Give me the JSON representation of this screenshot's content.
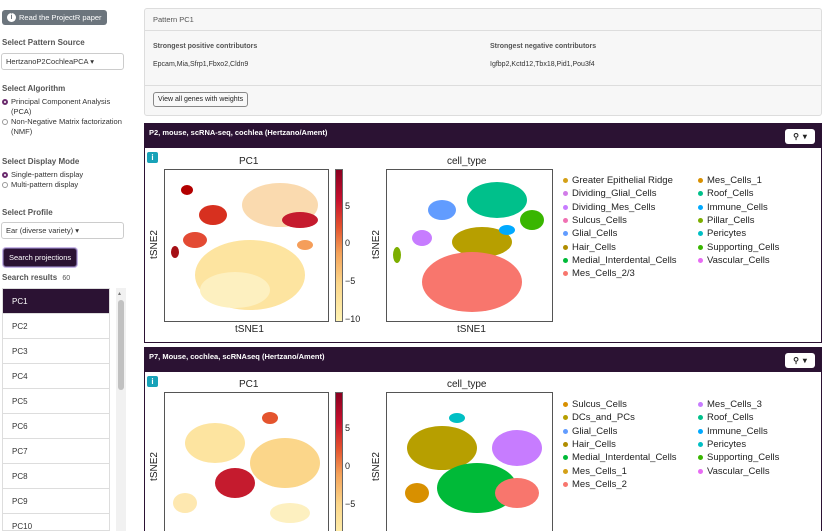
{
  "sidebar": {
    "paper_button": "Read the ProjectR paper",
    "pattern_source_title": "Select Pattern Source",
    "pattern_source_value": "HertzanoP2CochleaPCA",
    "algorithm_title": "Select Algorithm",
    "algorithm_options": [
      "Principal Component Analysis (PCA)",
      "Non-Negative Matrix factorization (NMF)"
    ],
    "display_mode_title": "Select Display Mode",
    "display_mode_options": [
      "Single-pattern display",
      "Multi-pattern display"
    ],
    "profile_title": "Select Profile",
    "profile_value": "Ear (diverse variety)",
    "search_button": "Search projections",
    "results_title": "Search results",
    "results_count": "60",
    "results": [
      "PC1",
      "PC2",
      "PC3",
      "PC4",
      "PC5",
      "PC6",
      "PC7",
      "PC8",
      "PC9",
      "PC10"
    ]
  },
  "pattern": {
    "header": "Pattern PC1",
    "pos_label": "Strongest positive contributors",
    "pos_genes": "Epcam,Mia,Sfrp1,Fbxo2,Cldn9",
    "neg_label": "Strongest negative contributors",
    "neg_genes": "Igfbp2,Kctd12,Tbx18,Pid1,Pou3f4",
    "weights_button": "View all genes with weights"
  },
  "datasets": [
    {
      "title": "P2, mouse, scRNA-seq, cochlea (Hertzano/Ament)",
      "left_title": "PC1",
      "right_title": "cell_type",
      "xlabel": "tSNE1",
      "ylabel": "tSNE2",
      "colorbar_ticks": [
        "5",
        "0",
        "−5",
        "−10"
      ],
      "legend_left": [
        {
          "label": "Greater Epithelial Ridge",
          "color": "#d4a017"
        },
        {
          "label": "Dividing_Glial_Cells",
          "color": "#d17ce8"
        },
        {
          "label": "Dividing_Mes_Cells",
          "color": "#c77cff"
        },
        {
          "label": "Sulcus_Cells",
          "color": "#f071b3"
        },
        {
          "label": "Glial_Cells",
          "color": "#619cff"
        },
        {
          "label": "Hair_Cells",
          "color": "#b08d00"
        },
        {
          "label": "Medial_Interdental_Cells",
          "color": "#00ba38"
        },
        {
          "label": "Mes_Cells_2/3",
          "color": "#f8766d"
        }
      ],
      "legend_right": [
        {
          "label": "Mes_Cells_1",
          "color": "#d89000"
        },
        {
          "label": "Roof_Cells",
          "color": "#00c08b"
        },
        {
          "label": "Immune_Cells",
          "color": "#00a9ff"
        },
        {
          "label": "Pillar_Cells",
          "color": "#7cae00"
        },
        {
          "label": "Pericytes",
          "color": "#00bfc4"
        },
        {
          "label": "Supporting_Cells",
          "color": "#39b600"
        },
        {
          "label": "Vascular_Cells",
          "color": "#e76bf3"
        }
      ]
    },
    {
      "title": "P7, Mouse, cochlea, scRNAseq (Hertzano/Ament)",
      "left_title": "PC1",
      "right_title": "cell_type",
      "xlabel": "",
      "ylabel": "tSNE2",
      "colorbar_ticks": [
        "5",
        "0",
        "−5"
      ],
      "legend_left": [
        {
          "label": "Sulcus_Cells",
          "color": "#d89000"
        },
        {
          "label": "DCs_and_PCs",
          "color": "#b79f00"
        },
        {
          "label": "Glial_Cells",
          "color": "#619cff"
        },
        {
          "label": "Hair_Cells",
          "color": "#b08d00"
        },
        {
          "label": "Medial_Interdental_Cells",
          "color": "#00ba38"
        },
        {
          "label": "Mes_Cells_1",
          "color": "#d4a017"
        },
        {
          "label": "Mes_Cells_2",
          "color": "#f8766d"
        }
      ],
      "legend_right": [
        {
          "label": "Mes_Cells_3",
          "color": "#c77cff"
        },
        {
          "label": "Roof_Cells",
          "color": "#00c08b"
        },
        {
          "label": "Immune_Cells",
          "color": "#00a9ff"
        },
        {
          "label": "Pericytes",
          "color": "#00bfc4"
        },
        {
          "label": "Supporting_Cells",
          "color": "#39b600"
        },
        {
          "label": "Vascular_Cells",
          "color": "#e76bf3"
        }
      ]
    }
  ]
}
